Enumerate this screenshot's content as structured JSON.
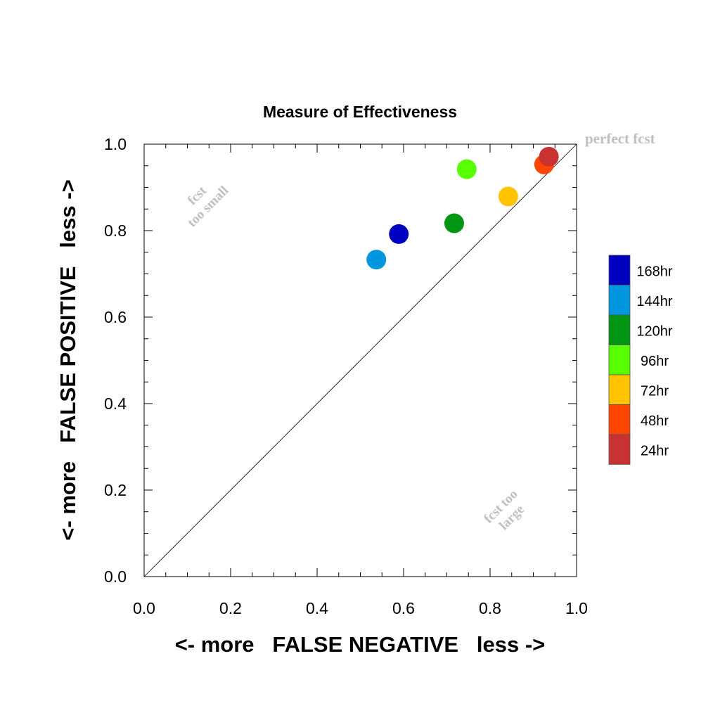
{
  "chart_data": {
    "type": "scatter",
    "title": "Measure of Effectiveness",
    "xlabel": "<- more   FALSE NEGATIVE   less ->",
    "ylabel": "<- more   FALSE POSITIVE   less ->",
    "xlim": [
      0,
      1
    ],
    "ylim": [
      0,
      1
    ],
    "x_ticks": [
      "0.0",
      "0.2",
      "0.4",
      "0.6",
      "0.8",
      "1.0"
    ],
    "y_ticks": [
      "0.0",
      "0.2",
      "0.4",
      "0.6",
      "0.8",
      "1.0"
    ],
    "grid": false,
    "diagonal_line": true,
    "legend_position": "right",
    "annotations": {
      "perfect": "perfect fcst",
      "too_small_1": "fcst",
      "too_small_2": "too small",
      "too_large_1": "fcst too",
      "too_large_2": "large"
    },
    "series": [
      {
        "name": "168hr",
        "color": "#0000c0",
        "x": 0.589,
        "y": 0.792
      },
      {
        "name": "144hr",
        "color": "#0096e0",
        "x": 0.537,
        "y": 0.733
      },
      {
        "name": "120hr",
        "color": "#009614",
        "x": 0.717,
        "y": 0.817
      },
      {
        "name": "96hr",
        "color": "#58ff00",
        "x": 0.746,
        "y": 0.942
      },
      {
        "name": "72hr",
        "color": "#ffc300",
        "x": 0.842,
        "y": 0.879
      },
      {
        "name": "48hr",
        "color": "#ff4600",
        "x": 0.925,
        "y": 0.953
      },
      {
        "name": "24hr",
        "color": "#c83232",
        "x": 0.936,
        "y": 0.971
      }
    ]
  }
}
